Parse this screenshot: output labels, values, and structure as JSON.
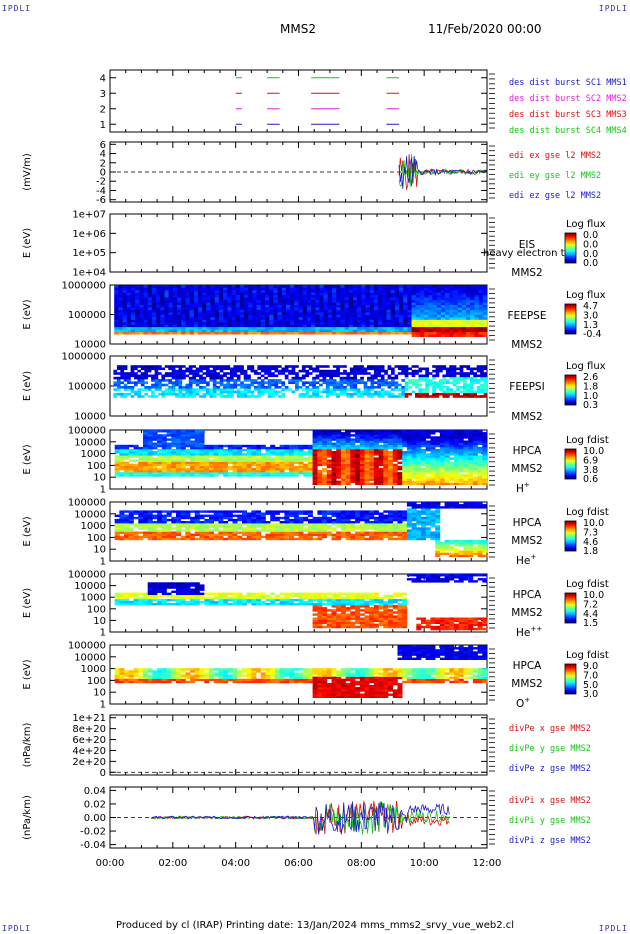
{
  "corners": {
    "tl": "IPDLI",
    "tr": "IPDLI",
    "bl": "IPDLI",
    "br": "IPDLI"
  },
  "header": {
    "spacecraft": "MMS2",
    "date": "11/Feb/2020 00:00"
  },
  "footer": {
    "text": "Produced by cl (IRAP)   Printing date: 13/Jan/2024   mms_mms2_srvy_vue_web2.cl"
  },
  "colors": {
    "blue": "#1a1acc",
    "magenta": "#e020e0",
    "red": "#d81010",
    "green": "#10c810"
  },
  "chart_data": {
    "type": "multi-panel time series",
    "x_range": [
      "00:00",
      "12:00"
    ],
    "x_ticks": [
      "00:00",
      "02:00",
      "04:00",
      "06:00",
      "08:00",
      "10:00",
      "12:00"
    ],
    "panels": [
      {
        "id": "burst",
        "ylabel": "",
        "yticks": [
          "1",
          "2",
          "3",
          "4"
        ],
        "legend": [
          {
            "text": "des dist burst SC1 MMS1",
            "color": "#1a1acc"
          },
          {
            "text": "des dist burst SC2 MMS2",
            "color": "#e020e0"
          },
          {
            "text": "des dist burst SC3 MMS3",
            "color": "#d81010"
          },
          {
            "text": "des dist burst SC4 MMS4",
            "color": "#10c810"
          }
        ]
      },
      {
        "id": "edi",
        "ylabel": "(mV/m)",
        "yticks": [
          "-6",
          "-4",
          "-2",
          "0",
          "2",
          "4",
          "6"
        ],
        "legend": [
          {
            "text": "edi ex gse l2 MMS2",
            "color": "#d81010"
          },
          {
            "text": "edi ey gse l2 MMS2",
            "color": "#10c810"
          },
          {
            "text": "edi ez gse l2 MMS2",
            "color": "#1a1acc"
          }
        ]
      },
      {
        "id": "eis",
        "ylabel": "E (eV)",
        "yticks": [
          "1e+04",
          "1e+05",
          "1e+06",
          "1e+07"
        ],
        "label_lines": [
          "EIS",
          "MMS2"
        ],
        "overlay": "heavy electron to",
        "cbar_title": "Log flux",
        "cbar_ticks": [
          "0.0",
          "0.0",
          "0.0",
          "0.0"
        ]
      },
      {
        "id": "feepse",
        "ylabel": "E (eV)",
        "yticks": [
          "10000",
          "100000",
          "1000000"
        ],
        "label_lines": [
          "FEEPSE",
          "MMS2"
        ],
        "cbar_title": "Log flux",
        "cbar_ticks": [
          "4.7",
          "3.0",
          "1.3",
          "-0.4"
        ]
      },
      {
        "id": "feepsi",
        "ylabel": "E (eV)",
        "yticks": [
          "10000",
          "100000",
          "1000000"
        ],
        "label_lines": [
          "FEEPSI",
          "MMS2"
        ],
        "cbar_title": "Log flux",
        "cbar_ticks": [
          "2.6",
          "1.8",
          "1.0",
          "0.3"
        ]
      },
      {
        "id": "hpca_h",
        "ylabel": "E (eV)",
        "yticks": [
          "1",
          "10",
          "100",
          "1000",
          "10000",
          "100000"
        ],
        "label_lines": [
          "HPCA",
          "MMS2"
        ],
        "species": "H",
        "sup": "+",
        "cbar_title": "Log fdist",
        "cbar_ticks": [
          "10.0",
          "6.9",
          "3.8",
          "0.6"
        ]
      },
      {
        "id": "hpca_he",
        "ylabel": "E (eV)",
        "yticks": [
          "1",
          "10",
          "100",
          "1000",
          "10000",
          "100000"
        ],
        "label_lines": [
          "HPCA",
          "MMS2"
        ],
        "species": "He",
        "sup": "+",
        "cbar_title": "Log fdist",
        "cbar_ticks": [
          "10.0",
          "7.3",
          "4.6",
          "1.8"
        ]
      },
      {
        "id": "hpca_hepp",
        "ylabel": "E (eV)",
        "yticks": [
          "1",
          "10",
          "100",
          "1000",
          "10000",
          "100000"
        ],
        "label_lines": [
          "HPCA",
          "MMS2"
        ],
        "species": "He",
        "sup": "++",
        "cbar_title": "Log fdist",
        "cbar_ticks": [
          "10.0",
          "7.2",
          "4.4",
          "1.5"
        ]
      },
      {
        "id": "hpca_o",
        "ylabel": "E (eV)",
        "yticks": [
          "1",
          "10",
          "100",
          "1000",
          "10000",
          "100000"
        ],
        "label_lines": [
          "HPCA",
          "MMS2"
        ],
        "species": "O",
        "sup": "+",
        "cbar_title": "Log fdist",
        "cbar_ticks": [
          "9.0",
          "7.0",
          "5.0",
          "3.0"
        ]
      },
      {
        "id": "divpe",
        "ylabel": "(nPa/km)",
        "yticks": [
          "0",
          "2e+20",
          "4e+20",
          "6e+20",
          "8e+20",
          "1e+21"
        ],
        "legend": [
          {
            "text": "divPe x gse MMS2",
            "color": "#d81010"
          },
          {
            "text": "divPe y gse MMS2",
            "color": "#10c810"
          },
          {
            "text": "divPe z gse MMS2",
            "color": "#1a1acc"
          }
        ]
      },
      {
        "id": "divpi",
        "ylabel": "(nPa/km)",
        "yticks": [
          "-0.04",
          "-0.02",
          "0.00",
          "0.02",
          "0.04"
        ],
        "legend": [
          {
            "text": "divPi x gse MMS2",
            "color": "#d81010"
          },
          {
            "text": "divPi y gse MMS2",
            "color": "#10c810"
          },
          {
            "text": "divPi z gse MMS2",
            "color": "#1a1acc"
          }
        ]
      }
    ]
  }
}
